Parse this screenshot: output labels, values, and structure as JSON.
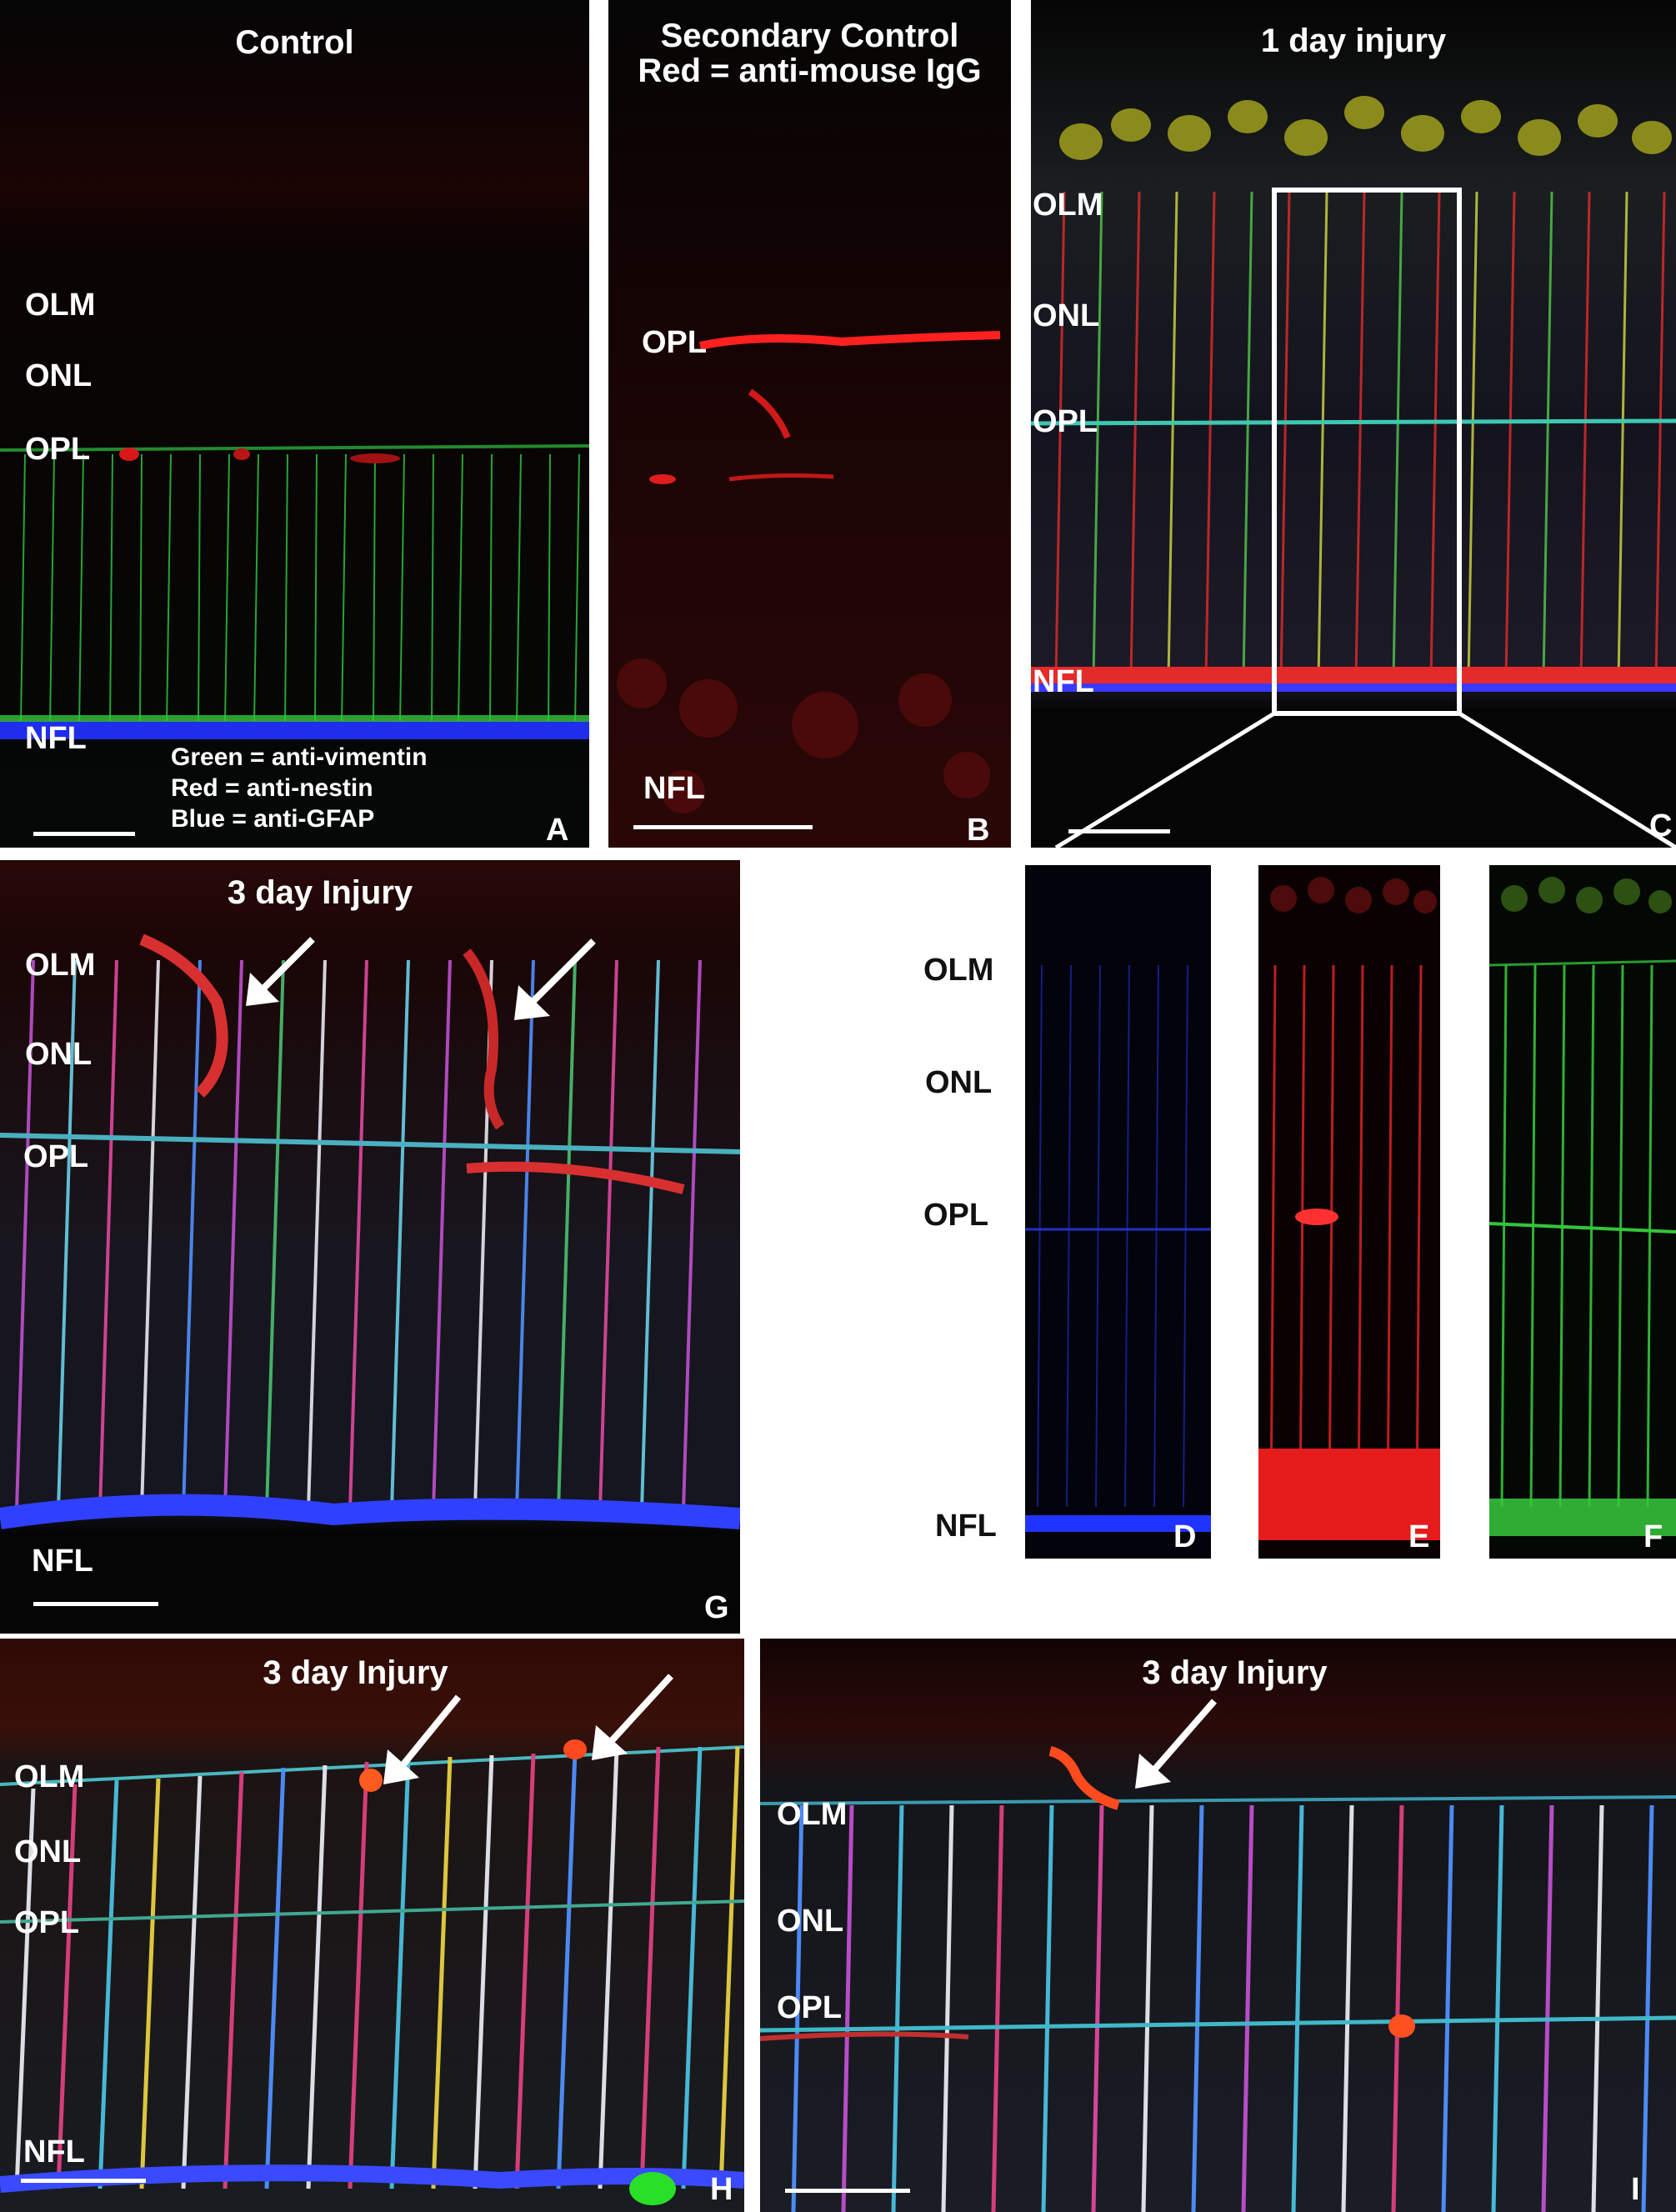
{
  "figure": {
    "panels": [
      {
        "id": "A",
        "title": "Control",
        "layers": [
          "OLM",
          "ONL",
          "OPL",
          "NFL"
        ],
        "legend": [
          "Green = anti-vimentin",
          "Red = anti-nestin",
          "Blue = anti-GFAP"
        ],
        "letter": "A"
      },
      {
        "id": "B",
        "title_line1": "Secondary Control",
        "title_line2": "Red = anti-mouse IgG",
        "layers": [
          "OPL",
          "NFL"
        ],
        "letter": "B"
      },
      {
        "id": "C",
        "title": "1 day injury",
        "layers": [
          "OLM",
          "ONL",
          "OPL",
          "NFL"
        ],
        "letter": "C"
      },
      {
        "id": "G",
        "title": "3 day Injury",
        "layers": [
          "OLM",
          "ONL",
          "OPL",
          "NFL"
        ],
        "letter": "G"
      },
      {
        "id": "DEF",
        "layers": [
          "OLM",
          "ONL",
          "OPL",
          "NFL"
        ],
        "letters": [
          "D",
          "E",
          "F"
        ]
      },
      {
        "id": "H",
        "title": "3 day Injury",
        "layers": [
          "OLM",
          "ONL",
          "OPL",
          "NFL"
        ],
        "letter": "H"
      },
      {
        "id": "I",
        "title": "3 day Injury",
        "layers": [
          "OLM",
          "ONL",
          "OPL"
        ],
        "letter": "I"
      }
    ],
    "icons": [
      "arrow-icon",
      "scale-bar"
    ],
    "colors": {
      "background": "#050505",
      "green": "#3cd23c",
      "red": "#e01818",
      "blue": "#2a3cff",
      "text": "#ffffff"
    }
  }
}
